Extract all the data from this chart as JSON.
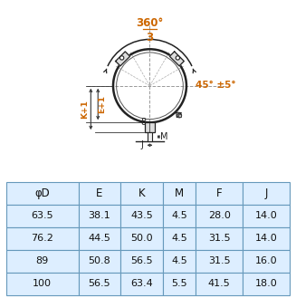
{
  "table_headers": [
    "φD",
    "E",
    "K",
    "M",
    "F",
    "J"
  ],
  "table_rows": [
    [
      "63.5",
      "38.1",
      "43.5",
      "4.5",
      "28.0",
      "14.0"
    ],
    [
      "76.2",
      "44.5",
      "50.0",
      "4.5",
      "31.5",
      "14.0"
    ],
    [
      "89",
      "50.8",
      "56.5",
      "4.5",
      "31.5",
      "16.0"
    ],
    [
      "100",
      "56.5",
      "63.4",
      "5.5",
      "41.5",
      "18.0"
    ]
  ],
  "table_bg": "#ddeeff",
  "table_border": "#6699bb",
  "text_color": "#111111",
  "orange": "#cc6600",
  "dark": "#222222",
  "gray": "#666666",
  "lightgray": "#cccccc",
  "angle_top": "360°",
  "angle_bot": "3",
  "angle_right": "45° ±5°"
}
